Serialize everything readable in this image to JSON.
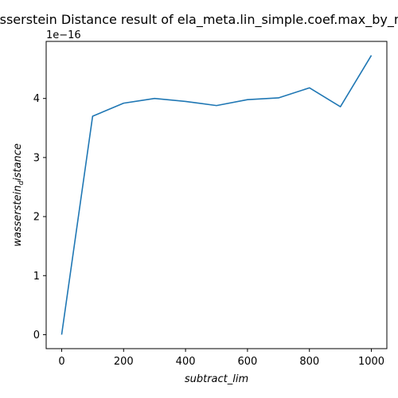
{
  "chart_data": {
    "type": "line",
    "title": "Wasserstein Distance result of ela_meta.lin_simple.coef.max_by_min",
    "xlabel": "subtract_lim",
    "ylabel_main": "wasserstein",
    "ylabel_sub": "d",
    "ylabel_tail": "istance",
    "y_offset_label": "1e−16",
    "x": [
      0,
      100,
      200,
      300,
      400,
      500,
      600,
      700,
      800,
      900,
      1000
    ],
    "y": [
      0.0,
      3.7,
      3.92,
      4.0,
      3.95,
      3.88,
      3.98,
      4.01,
      4.18,
      3.86,
      4.73
    ],
    "xlim": [
      -50,
      1050
    ],
    "ylim": [
      -0.2365,
      4.9665
    ],
    "xticks": [
      0,
      200,
      400,
      600,
      800,
      1000
    ],
    "xtick_labels": [
      "0",
      "200",
      "400",
      "600",
      "800",
      "1000"
    ],
    "yticks": [
      0,
      1,
      2,
      3,
      4
    ],
    "ytick_labels": [
      "0",
      "1",
      "2",
      "3",
      "4"
    ],
    "line_color": "#1f77b4",
    "grid": false,
    "legend": "none"
  }
}
